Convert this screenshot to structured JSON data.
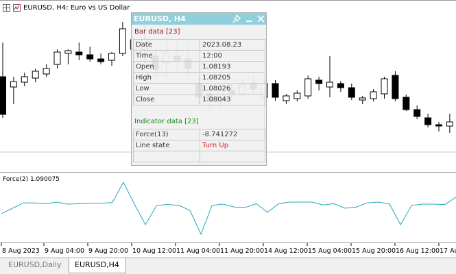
{
  "chart_header": {
    "title": "EURUSD, H4:  Euro vs US Dollar"
  },
  "indicator_label": "Force(2) 1.090075",
  "time_axis": [
    "8 Aug 2023",
    "9 Aug 04:00",
    "9 Aug 20:00",
    "10 Aug 12:00",
    "11 Aug 04:00",
    "11 Aug 20:00",
    "14 Aug 12:00",
    "15 Aug 04:00",
    "15 Aug 20:00",
    "16 Aug 12:00",
    "17 Aug"
  ],
  "tabs": [
    {
      "label": "EURUSD,Daily",
      "active": false
    },
    {
      "label": "EURUSD,H4",
      "active": true
    }
  ],
  "data_window": {
    "title": "EURUSD, H4",
    "bar_section": "Bar data [23]",
    "bar_rows": [
      {
        "key": "Date",
        "value": "2023.08.23"
      },
      {
        "key": "Time",
        "value": "12:00"
      },
      {
        "key": "Open",
        "value": "1.08193"
      },
      {
        "key": "High",
        "value": "1.08205"
      },
      {
        "key": "Low",
        "value": "1.08026"
      },
      {
        "key": "Close",
        "value": "1.08043"
      }
    ],
    "indicator_section": "Indicator data [23]",
    "indicator_rows": [
      {
        "key": "Force(13)",
        "value": "-8.741272"
      },
      {
        "key": "Line state",
        "value": "Turn Up"
      }
    ]
  },
  "colors": {
    "window_header": "#8fd0dc",
    "bar_section": "#8b1a1a",
    "indicator_section": "#1a8a1a",
    "turn_up": "#d62020",
    "force_line": "#20a8b8"
  },
  "candles": [
    {
      "o": 1.096,
      "h": 1.101,
      "l": 1.09,
      "c": 1.0905
    },
    {
      "o": 1.0945,
      "h": 1.096,
      "l": 1.092,
      "c": 1.0953
    },
    {
      "o": 1.0952,
      "h": 1.0966,
      "l": 1.0946,
      "c": 1.096
    },
    {
      "o": 1.0958,
      "h": 1.0972,
      "l": 1.0952,
      "c": 1.0968
    },
    {
      "o": 1.0964,
      "h": 1.0978,
      "l": 1.096,
      "c": 1.0972
    },
    {
      "o": 1.0978,
      "h": 1.1,
      "l": 1.0972,
      "c": 1.0996
    },
    {
      "o": 1.0994,
      "h": 1.1,
      "l": 1.0978,
      "c": 1.0998
    },
    {
      "o": 1.0996,
      "h": 1.101,
      "l": 1.0984,
      "c": 1.0992
    },
    {
      "o": 1.0992,
      "h": 1.1004,
      "l": 1.0982,
      "c": 1.0986
    },
    {
      "o": 1.0986,
      "h": 1.0994,
      "l": 1.0978,
      "c": 1.0982
    },
    {
      "o": 1.0984,
      "h": 1.0996,
      "l": 1.0976,
      "c": 1.0994
    },
    {
      "o": 1.0994,
      "h": 1.104,
      "l": 1.099,
      "c": 1.103
    },
    {
      "o": 1.1,
      "h": 1.102,
      "l": 1.098,
      "c": 1.1014
    },
    {
      "o": 1.1,
      "h": 1.104,
      "l": 1.098,
      "c": 1.1014
    },
    {
      "o": 1.099,
      "h": 1.1,
      "l": 1.096,
      "c": 1.097
    },
    {
      "o": 1.098,
      "h": 1.101,
      "l": 1.096,
      "c": 1.0994
    },
    {
      "o": 1.099,
      "h": 1.101,
      "l": 1.097,
      "c": 1.0984
    },
    {
      "o": 1.0986,
      "h": 1.101,
      "l": 1.096,
      "c": 1.0972
    },
    {
      "o": 1.095,
      "h": 1.096,
      "l": 1.092,
      "c": 1.093
    },
    {
      "o": 1.0935,
      "h": 1.0945,
      "l": 1.0912,
      "c": 1.0925
    },
    {
      "o": 1.0925,
      "h": 1.095,
      "l": 1.0915,
      "c": 1.094
    },
    {
      "o": 1.094,
      "h": 1.095,
      "l": 1.0925,
      "c": 1.0935
    },
    {
      "o": 1.0935,
      "h": 1.0955,
      "l": 1.093,
      "c": 1.0948
    },
    {
      "o": 1.095,
      "h": 1.096,
      "l": 1.0935,
      "c": 1.0942
    },
    {
      "o": 1.093,
      "h": 1.0955,
      "l": 1.087,
      "c": 1.095
    },
    {
      "o": 1.095,
      "h": 1.0955,
      "l": 1.0925,
      "c": 1.093
    },
    {
      "o": 1.0925,
      "h": 1.0935,
      "l": 1.092,
      "c": 1.0932
    },
    {
      "o": 1.0928,
      "h": 1.094,
      "l": 1.0924,
      "c": 1.0936
    },
    {
      "o": 1.0932,
      "h": 1.0962,
      "l": 1.0928,
      "c": 1.0957
    },
    {
      "o": 1.0955,
      "h": 1.096,
      "l": 1.094,
      "c": 1.095
    },
    {
      "o": 1.0945,
      "h": 1.099,
      "l": 1.093,
      "c": 1.0952
    },
    {
      "o": 1.095,
      "h": 1.0954,
      "l": 1.0938,
      "c": 1.0944
    },
    {
      "o": 1.0944,
      "h": 1.095,
      "l": 1.0926,
      "c": 1.093
    },
    {
      "o": 1.0926,
      "h": 1.0932,
      "l": 1.092,
      "c": 1.0929
    },
    {
      "o": 1.0928,
      "h": 1.0942,
      "l": 1.0924,
      "c": 1.0938
    },
    {
      "o": 1.0935,
      "h": 1.096,
      "l": 1.0928,
      "c": 1.0957
    },
    {
      "o": 1.0962,
      "h": 1.0968,
      "l": 1.0924,
      "c": 1.0928
    },
    {
      "o": 1.093,
      "h": 1.0934,
      "l": 1.091,
      "c": 1.0912
    },
    {
      "o": 1.0912,
      "h": 1.0918,
      "l": 1.0898,
      "c": 1.0902
    },
    {
      "o": 1.09,
      "h": 1.0906,
      "l": 1.0886,
      "c": 1.089
    },
    {
      "o": 1.089,
      "h": 1.0894,
      "l": 1.088,
      "c": 1.0888
    },
    {
      "o": 1.0888,
      "h": 1.0906,
      "l": 1.0878,
      "c": 1.0894
    }
  ],
  "force_values": [
    -0.18,
    -0.05,
    0.08,
    0.08,
    0.06,
    0.1,
    0.05,
    0.06,
    0.07,
    0.07,
    0.09,
    0.58,
    0.05,
    -0.45,
    0.02,
    0.04,
    0.02,
    -0.1,
    -0.68,
    0.02,
    0.05,
    -0.02,
    -0.03,
    0.06,
    -0.15,
    0.06,
    0.1,
    0.1,
    0.1,
    0.03,
    0.06,
    -0.05,
    -0.02,
    0.08,
    0.1,
    0.05,
    -0.45,
    0.02,
    0.05,
    0.05,
    0.04,
    0.22
  ]
}
